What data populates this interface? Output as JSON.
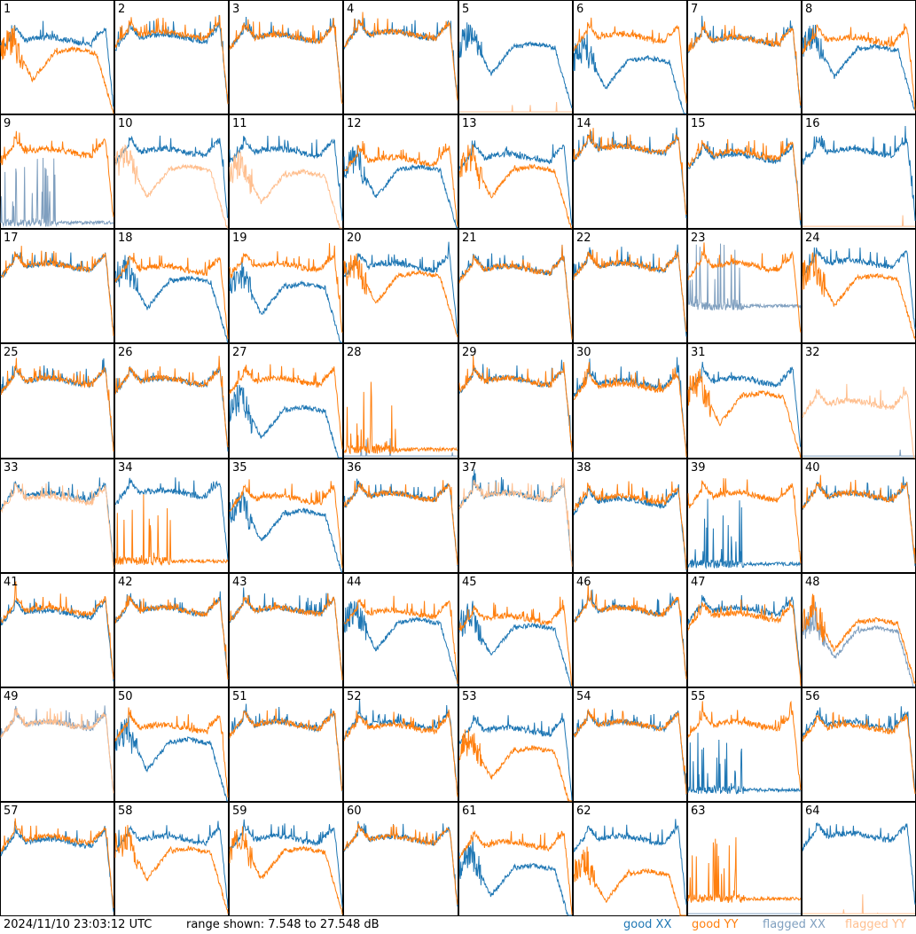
{
  "footer": {
    "timestamp": "2024/11/10 23:03:12 UTC",
    "range_text": "range shown: 7.548 to 27.548 dB",
    "legend": [
      {
        "label": "good XX",
        "color": "#1f77b4"
      },
      {
        "label": "good YY",
        "color": "#ff7f0e"
      },
      {
        "label": "flagged XX",
        "color": "#7f9fbf"
      },
      {
        "label": "flagged YY",
        "color": "#ffbf8f"
      }
    ]
  },
  "colors": {
    "good_xx": "#1f77b4",
    "good_yy": "#ff7f0e",
    "flagged_xx": "#7f9fbf",
    "flagged_yy": "#ffbf8f",
    "border": "#000000"
  },
  "chart_data": {
    "type": "line",
    "layout": "small-multiples 8x8",
    "ylim_db": [
      7.548,
      27.548
    ],
    "series_names": [
      "good XX",
      "good YY",
      "flagged XX",
      "flagged YY"
    ],
    "x_axis_note": "frequency channel (unlabeled)",
    "profile_shapes": {
      "A": "bandpass: rise at low channel, peak near 15%, plateau with ripples, rise near 90%, drop at band edge",
      "B": "bandpass with deep dip then recovery",
      "S": "spiky / noisy low-level spectrum",
      "F": "flat near floor / nearly empty"
    },
    "panels": [
      {
        "id": "1",
        "xx": {
          "state": "good",
          "shape": "A",
          "level": 20.5
        },
        "yy": {
          "state": "good",
          "shape": "B",
          "level": 18.0
        }
      },
      {
        "id": "2",
        "xx": {
          "state": "good",
          "shape": "A",
          "level": 21.0
        },
        "yy": {
          "state": "good",
          "shape": "A",
          "level": 21.5
        }
      },
      {
        "id": "3",
        "xx": {
          "state": "good",
          "shape": "A",
          "level": 21.0
        },
        "yy": {
          "state": "good",
          "shape": "A",
          "level": 21.0
        }
      },
      {
        "id": "4",
        "xx": {
          "state": "good",
          "shape": "A",
          "level": 21.5
        },
        "yy": {
          "state": "good",
          "shape": "A",
          "level": 21.5
        }
      },
      {
        "id": "5",
        "xx": {
          "state": "good",
          "shape": "B",
          "level": 19.0
        },
        "yy": {
          "state": "flagged",
          "shape": "F",
          "level": 8.0
        }
      },
      {
        "id": "6",
        "xx": {
          "state": "good",
          "shape": "B",
          "level": 16.5
        },
        "yy": {
          "state": "good",
          "shape": "A",
          "level": 21.0
        }
      },
      {
        "id": "7",
        "xx": {
          "state": "good",
          "shape": "A",
          "level": 20.5
        },
        "yy": {
          "state": "good",
          "shape": "A",
          "level": 20.5
        }
      },
      {
        "id": "8",
        "xx": {
          "state": "good",
          "shape": "B",
          "level": 18.5
        },
        "yy": {
          "state": "good",
          "shape": "A",
          "level": 20.5
        }
      },
      {
        "id": "9",
        "xx": {
          "state": "flagged",
          "shape": "S",
          "level": 8.5
        },
        "yy": {
          "state": "good",
          "shape": "A",
          "level": 21.0
        }
      },
      {
        "id": "10",
        "xx": {
          "state": "good",
          "shape": "A",
          "level": 21.0
        },
        "yy": {
          "state": "flagged",
          "shape": "B",
          "level": 17.5
        }
      },
      {
        "id": "11",
        "xx": {
          "state": "good",
          "shape": "A",
          "level": 21.0
        },
        "yy": {
          "state": "flagged",
          "shape": "B",
          "level": 16.5
        }
      },
      {
        "id": "12",
        "xx": {
          "state": "good",
          "shape": "B",
          "level": 17.5
        },
        "yy": {
          "state": "good",
          "shape": "A",
          "level": 19.5
        }
      },
      {
        "id": "13",
        "xx": {
          "state": "good",
          "shape": "A",
          "level": 20.0
        },
        "yy": {
          "state": "good",
          "shape": "B",
          "level": 17.5
        }
      },
      {
        "id": "14",
        "xx": {
          "state": "good",
          "shape": "A",
          "level": 21.5
        },
        "yy": {
          "state": "good",
          "shape": "A",
          "level": 21.5
        }
      },
      {
        "id": "15",
        "xx": {
          "state": "good",
          "shape": "A",
          "level": 20.0
        },
        "yy": {
          "state": "good",
          "shape": "A",
          "level": 20.5
        }
      },
      {
        "id": "16",
        "xx": {
          "state": "good",
          "shape": "A",
          "level": 21.0
        },
        "yy": {
          "state": "flagged",
          "shape": "F",
          "level": 8.0
        }
      },
      {
        "id": "17",
        "xx": {
          "state": "good",
          "shape": "A",
          "level": 21.0
        },
        "yy": {
          "state": "good",
          "shape": "A",
          "level": 21.0
        }
      },
      {
        "id": "18",
        "xx": {
          "state": "good",
          "shape": "B",
          "level": 18.0
        },
        "yy": {
          "state": "good",
          "shape": "A",
          "level": 20.5
        }
      },
      {
        "id": "19",
        "xx": {
          "state": "good",
          "shape": "B",
          "level": 17.0
        },
        "yy": {
          "state": "good",
          "shape": "A",
          "level": 21.0
        }
      },
      {
        "id": "20",
        "xx": {
          "state": "good",
          "shape": "A",
          "level": 21.0
        },
        "yy": {
          "state": "good",
          "shape": "B",
          "level": 19.0
        }
      },
      {
        "id": "21",
        "xx": {
          "state": "good",
          "shape": "A",
          "level": 20.5
        },
        "yy": {
          "state": "good",
          "shape": "A",
          "level": 20.5
        }
      },
      {
        "id": "22",
        "xx": {
          "state": "good",
          "shape": "A",
          "level": 21.0
        },
        "yy": {
          "state": "good",
          "shape": "A",
          "level": 21.0
        }
      },
      {
        "id": "23",
        "xx": {
          "state": "flagged",
          "shape": "S",
          "level": 14.0
        },
        "yy": {
          "state": "good",
          "shape": "A",
          "level": 21.0
        }
      },
      {
        "id": "24",
        "xx": {
          "state": "good",
          "shape": "A",
          "level": 21.5
        },
        "yy": {
          "state": "good",
          "shape": "B",
          "level": 18.5
        }
      },
      {
        "id": "25",
        "xx": {
          "state": "good",
          "shape": "A",
          "level": 21.0
        },
        "yy": {
          "state": "good",
          "shape": "A",
          "level": 21.0
        }
      },
      {
        "id": "26",
        "xx": {
          "state": "good",
          "shape": "A",
          "level": 21.0
        },
        "yy": {
          "state": "good",
          "shape": "A",
          "level": 21.0
        }
      },
      {
        "id": "27",
        "xx": {
          "state": "good",
          "shape": "B",
          "level": 15.5
        },
        "yy": {
          "state": "good",
          "shape": "A",
          "level": 21.0
        }
      },
      {
        "id": "28",
        "xx": {
          "state": "flagged",
          "shape": "F",
          "level": 8.0
        },
        "yy": {
          "state": "good",
          "shape": "S",
          "level": 9.0
        }
      },
      {
        "id": "29",
        "xx": {
          "state": "good",
          "shape": "A",
          "level": 21.0
        },
        "yy": {
          "state": "good",
          "shape": "A",
          "level": 21.0
        }
      },
      {
        "id": "30",
        "xx": {
          "state": "good",
          "shape": "A",
          "level": 20.5
        },
        "yy": {
          "state": "good",
          "shape": "A",
          "level": 20.0
        }
      },
      {
        "id": "31",
        "xx": {
          "state": "good",
          "shape": "A",
          "level": 21.0
        },
        "yy": {
          "state": "good",
          "shape": "B",
          "level": 18.0
        }
      },
      {
        "id": "32",
        "xx": {
          "state": "flagged",
          "shape": "F",
          "level": 8.0
        },
        "yy": {
          "state": "flagged",
          "shape": "A",
          "level": 17.0
        }
      },
      {
        "id": "33",
        "xx": {
          "state": "good",
          "shape": "A",
          "level": 21.0
        },
        "yy": {
          "state": "flagged",
          "shape": "A",
          "level": 20.5
        }
      },
      {
        "id": "34",
        "xx": {
          "state": "good",
          "shape": "A",
          "level": 21.5
        },
        "yy": {
          "state": "good",
          "shape": "S",
          "level": 9.5
        }
      },
      {
        "id": "35",
        "xx": {
          "state": "good",
          "shape": "B",
          "level": 17.5
        },
        "yy": {
          "state": "good",
          "shape": "A",
          "level": 20.5
        }
      },
      {
        "id": "36",
        "xx": {
          "state": "good",
          "shape": "A",
          "level": 21.0
        },
        "yy": {
          "state": "good",
          "shape": "A",
          "level": 21.0
        }
      },
      {
        "id": "37",
        "xx": {
          "state": "good",
          "shape": "A",
          "level": 21.0
        },
        "yy": {
          "state": "flagged",
          "shape": "A",
          "level": 21.0
        }
      },
      {
        "id": "38",
        "xx": {
          "state": "good",
          "shape": "A",
          "level": 20.0
        },
        "yy": {
          "state": "good",
          "shape": "A",
          "level": 20.5
        }
      },
      {
        "id": "39",
        "xx": {
          "state": "good",
          "shape": "S",
          "level": 9.0
        },
        "yy": {
          "state": "good",
          "shape": "A",
          "level": 21.0
        }
      },
      {
        "id": "40",
        "xx": {
          "state": "good",
          "shape": "A",
          "level": 21.0
        },
        "yy": {
          "state": "good",
          "shape": "A",
          "level": 21.0
        }
      },
      {
        "id": "41",
        "xx": {
          "state": "good",
          "shape": "A",
          "level": 20.5
        },
        "yy": {
          "state": "good",
          "shape": "A",
          "level": 21.0
        }
      },
      {
        "id": "42",
        "xx": {
          "state": "good",
          "shape": "A",
          "level": 21.0
        },
        "yy": {
          "state": "good",
          "shape": "A",
          "level": 21.0
        }
      },
      {
        "id": "43",
        "xx": {
          "state": "good",
          "shape": "A",
          "level": 21.0
        },
        "yy": {
          "state": "good",
          "shape": "A",
          "level": 21.0
        }
      },
      {
        "id": "44",
        "xx": {
          "state": "good",
          "shape": "B",
          "level": 18.5
        },
        "yy": {
          "state": "good",
          "shape": "A",
          "level": 20.5
        }
      },
      {
        "id": "45",
        "xx": {
          "state": "good",
          "shape": "B",
          "level": 17.5
        },
        "yy": {
          "state": "good",
          "shape": "A",
          "level": 19.5
        }
      },
      {
        "id": "46",
        "xx": {
          "state": "good",
          "shape": "A",
          "level": 21.0
        },
        "yy": {
          "state": "good",
          "shape": "A",
          "level": 21.0
        }
      },
      {
        "id": "47",
        "xx": {
          "state": "good",
          "shape": "A",
          "level": 21.0
        },
        "yy": {
          "state": "good",
          "shape": "A",
          "level": 20.0
        }
      },
      {
        "id": "48",
        "xx": {
          "state": "flagged",
          "shape": "B",
          "level": 17.0
        },
        "yy": {
          "state": "good",
          "shape": "B",
          "level": 18.5
        }
      },
      {
        "id": "49",
        "xx": {
          "state": "flagged",
          "shape": "A",
          "level": 21.0
        },
        "yy": {
          "state": "flagged",
          "shape": "A",
          "level": 21.0
        }
      },
      {
        "id": "50",
        "xx": {
          "state": "good",
          "shape": "B",
          "level": 17.5
        },
        "yy": {
          "state": "good",
          "shape": "A",
          "level": 20.5
        }
      },
      {
        "id": "51",
        "xx": {
          "state": "good",
          "shape": "A",
          "level": 21.0
        },
        "yy": {
          "state": "good",
          "shape": "A",
          "level": 21.0
        }
      },
      {
        "id": "52",
        "xx": {
          "state": "good",
          "shape": "A",
          "level": 21.0
        },
        "yy": {
          "state": "good",
          "shape": "A",
          "level": 20.5
        }
      },
      {
        "id": "53",
        "xx": {
          "state": "good",
          "shape": "A",
          "level": 20.0
        },
        "yy": {
          "state": "good",
          "shape": "B",
          "level": 16.0
        }
      },
      {
        "id": "54",
        "xx": {
          "state": "good",
          "shape": "A",
          "level": 21.0
        },
        "yy": {
          "state": "good",
          "shape": "A",
          "level": 21.0
        }
      },
      {
        "id": "55",
        "xx": {
          "state": "good",
          "shape": "S",
          "level": 9.5
        },
        "yy": {
          "state": "good",
          "shape": "A",
          "level": 21.0
        }
      },
      {
        "id": "56",
        "xx": {
          "state": "good",
          "shape": "A",
          "level": 21.0
        },
        "yy": {
          "state": "good",
          "shape": "A",
          "level": 20.5
        }
      },
      {
        "id": "57",
        "xx": {
          "state": "good",
          "shape": "A",
          "level": 20.5
        },
        "yy": {
          "state": "good",
          "shape": "A",
          "level": 21.0
        }
      },
      {
        "id": "58",
        "xx": {
          "state": "good",
          "shape": "A",
          "level": 21.0
        },
        "yy": {
          "state": "good",
          "shape": "B",
          "level": 18.5
        }
      },
      {
        "id": "59",
        "xx": {
          "state": "good",
          "shape": "A",
          "level": 21.0
        },
        "yy": {
          "state": "good",
          "shape": "B",
          "level": 18.5
        }
      },
      {
        "id": "60",
        "xx": {
          "state": "good",
          "shape": "A",
          "level": 21.0
        },
        "yy": {
          "state": "good",
          "shape": "A",
          "level": 21.0
        }
      },
      {
        "id": "61",
        "xx": {
          "state": "good",
          "shape": "B",
          "level": 15.5
        },
        "yy": {
          "state": "good",
          "shape": "A",
          "level": 20.0
        }
      },
      {
        "id": "62",
        "xx": {
          "state": "good",
          "shape": "A",
          "level": 21.0
        },
        "yy": {
          "state": "good",
          "shape": "B",
          "level": 14.5
        }
      },
      {
        "id": "63",
        "xx": {
          "state": "flagged",
          "shape": "F",
          "level": 8.0
        },
        "yy": {
          "state": "good",
          "shape": "S",
          "level": 10.5
        }
      },
      {
        "id": "64",
        "xx": {
          "state": "good",
          "shape": "A",
          "level": 21.5
        },
        "yy": {
          "state": "flagged",
          "shape": "F",
          "level": 8.0
        }
      }
    ]
  }
}
